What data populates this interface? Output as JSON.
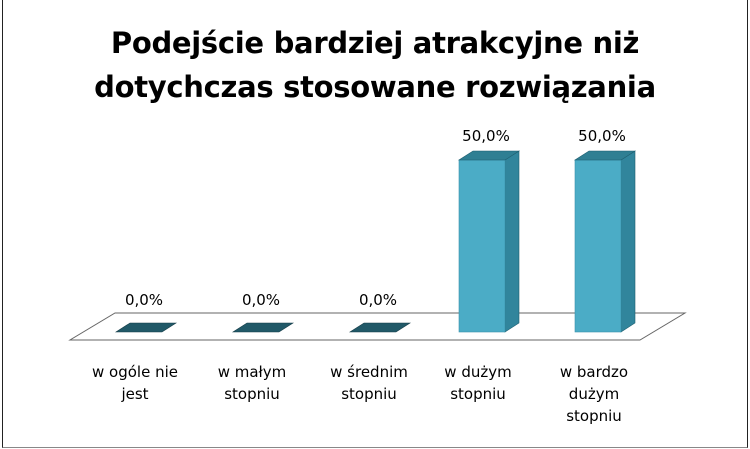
{
  "chart_data": {
    "type": "bar",
    "title_lines": [
      "Podejście bardziej atrakcyjne niż",
      "dotychczas stosowane rozwiązania"
    ],
    "categories": [
      [
        "w ogóle nie",
        "jest"
      ],
      [
        "w małym",
        "stopniu"
      ],
      [
        "w średnim",
        "stopniu"
      ],
      [
        "w dużym",
        "stopniu"
      ],
      [
        "w bardzo",
        "dużym",
        "stopniu"
      ]
    ],
    "values": [
      0.0,
      0.0,
      0.0,
      50.0,
      50.0
    ],
    "value_labels": [
      "0,0%",
      "0,0%",
      "0,0%",
      "50,0%",
      "50,0%"
    ],
    "ylim": [
      0,
      50
    ],
    "grid": false,
    "legend": "none",
    "colors": {
      "bar_front": "#4bacc6",
      "bar_side": "#31859c",
      "bar_top": "#2f7f93",
      "zero_bar": "#215968",
      "floor": "#ffffff",
      "floor_stroke": "#666666"
    }
  }
}
